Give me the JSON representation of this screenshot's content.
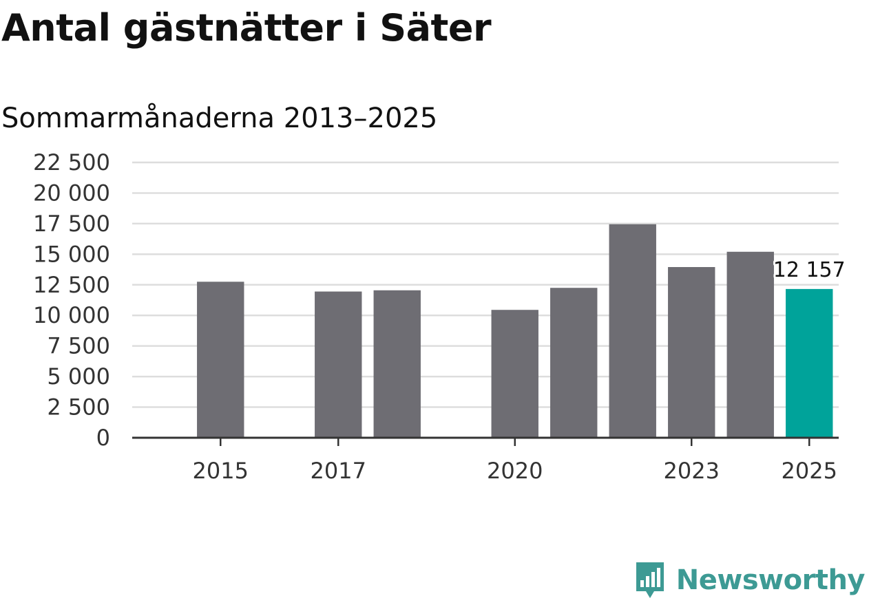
{
  "header": {
    "title": "Antal gästnätter i Säter",
    "subtitle": "Sommarmånaderna 2013–2025"
  },
  "brand": {
    "name": "Newsworthy",
    "icon": "bar-chart-speech-bubble-icon",
    "color": "#3d9a94"
  },
  "chart_data": {
    "type": "bar",
    "title": "Antal gästnätter i Säter",
    "subtitle": "Sommarmånaderna 2013–2025",
    "xlabel": "",
    "ylabel": "",
    "x_range": [
      2013.5,
      2025.5
    ],
    "ylim": [
      0,
      22500
    ],
    "y_ticks": [
      0,
      2500,
      5000,
      7500,
      10000,
      12500,
      15000,
      17500,
      20000,
      22500
    ],
    "y_tick_labels": [
      "0",
      "2 500",
      "5 000",
      "7 500",
      "10 000",
      "12 500",
      "15 000",
      "17 500",
      "20 000",
      "22 500"
    ],
    "x_ticks": [
      2015,
      2017,
      2020,
      2023,
      2025
    ],
    "x_tick_labels": [
      "2015",
      "2017",
      "2020",
      "2023",
      "2025"
    ],
    "grid": true,
    "legend": "none",
    "bars": [
      {
        "year": 2015,
        "value": 12750
      },
      {
        "year": 2017,
        "value": 11950
      },
      {
        "year": 2018,
        "value": 12050
      },
      {
        "year": 2020,
        "value": 10450
      },
      {
        "year": 2021,
        "value": 12250
      },
      {
        "year": 2022,
        "value": 17450
      },
      {
        "year": 2023,
        "value": 13950
      },
      {
        "year": 2024,
        "value": 15200
      },
      {
        "year": 2025,
        "value": 12157
      }
    ],
    "data_labels": [
      {
        "year": 2025,
        "text": "12 157"
      }
    ],
    "colors": {
      "bar": "#6e6d73",
      "highlight": "#00a39a",
      "grid": "#dddddd",
      "axis": "#333333"
    },
    "highlight_year": 2025
  }
}
